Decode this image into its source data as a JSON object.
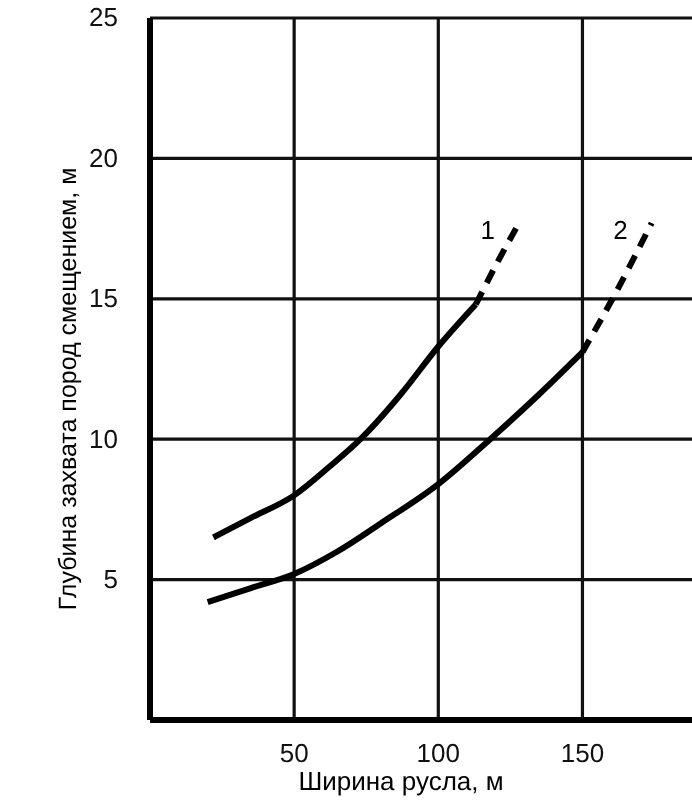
{
  "chart_data": {
    "type": "line",
    "xlabel": "Ширина русла, м",
    "ylabel": "Глубина захвата пород смещением, м",
    "xlim": [
      0,
      188
    ],
    "ylim": [
      0,
      25
    ],
    "xticks": [
      50,
      100,
      150
    ],
    "yticks": [
      5,
      10,
      15,
      20,
      25
    ],
    "grid": true,
    "marker": "none",
    "series": [
      {
        "color": "#000000",
        "line_style": "solid",
        "x": [
          22,
          35,
          50,
          62,
          73,
          87,
          100,
          113
        ],
        "values": [
          6.5,
          7.2,
          8.0,
          9.0,
          10.0,
          11.6,
          13.3,
          14.8
        ]
      },
      {
        "name": "1",
        "color": "#000000",
        "line_style": "dashed",
        "x": [
          113,
          120,
          128
        ],
        "values": [
          14.8,
          16.2,
          17.7
        ]
      },
      {
        "color": "#000000",
        "line_style": "solid",
        "x": [
          20,
          35,
          50,
          65,
          80,
          100,
          118,
          135,
          150
        ],
        "values": [
          4.2,
          4.7,
          5.2,
          6.0,
          7.0,
          8.4,
          10.0,
          11.6,
          13.1
        ]
      },
      {
        "name": "2",
        "color": "#000000",
        "line_style": "dashed",
        "x": [
          150,
          162,
          174
        ],
        "values": [
          13.1,
          15.3,
          17.7
        ]
      }
    ]
  }
}
